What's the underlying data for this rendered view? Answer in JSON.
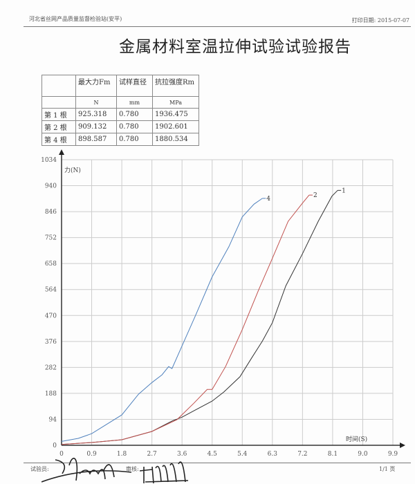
{
  "header": {
    "org": "河北省丝网产品质量监督检验站(安平)",
    "print_date_label": "打印日期:",
    "print_date": "2015-07-07"
  },
  "title": "金属材料室温拉伸试验试验报告",
  "table": {
    "headers": [
      "",
      "最大力Fm",
      "试样直径",
      "抗拉强度Rm"
    ],
    "units": [
      "",
      "N",
      "mm",
      "MPa"
    ],
    "rows": [
      [
        "第 1 根",
        "925.318",
        "0.780",
        "1936.475"
      ],
      [
        "第 2 根",
        "909.132",
        "0.780",
        "1902.601"
      ],
      [
        "第 4 根",
        "898.587",
        "0.780",
        "1880.534"
      ]
    ]
  },
  "chart_data": {
    "type": "line",
    "ylabel": "力(N)",
    "xlabel": "时间(S)",
    "xlim": [
      0,
      9.9
    ],
    "ylim": [
      0,
      1034
    ],
    "xticks": [
      "0",
      "0.9",
      "1.8",
      "2.7",
      "3.6",
      "4.5",
      "5.4",
      "6.3",
      "7.2",
      "8.1",
      "9.0",
      "9.9"
    ],
    "yticks": [
      "0",
      "94",
      "188",
      "282",
      "376",
      "470",
      "564",
      "658",
      "752",
      "846",
      "940",
      "1034"
    ],
    "grid": true,
    "series": [
      {
        "name": "1",
        "color": "#333333",
        "points": [
          [
            0,
            3
          ],
          [
            0.9,
            10
          ],
          [
            1.8,
            20
          ],
          [
            2.7,
            50
          ],
          [
            3.3,
            88
          ],
          [
            3.6,
            102
          ],
          [
            4.0,
            128
          ],
          [
            4.5,
            160
          ],
          [
            4.85,
            193
          ],
          [
            5.33,
            248
          ],
          [
            5.7,
            320
          ],
          [
            6.0,
            377
          ],
          [
            6.3,
            444
          ],
          [
            6.7,
            577
          ],
          [
            7.2,
            694
          ],
          [
            7.67,
            811
          ],
          [
            8.08,
            902
          ],
          [
            8.25,
            923
          ]
        ]
      },
      {
        "name": "2",
        "color": "#c0504d",
        "points": [
          [
            0,
            3
          ],
          [
            0.9,
            10
          ],
          [
            1.8,
            20
          ],
          [
            2.7,
            50
          ],
          [
            3.45,
            93
          ],
          [
            3.95,
            152
          ],
          [
            4.35,
            202
          ],
          [
            4.5,
            202
          ],
          [
            4.9,
            285
          ],
          [
            5.4,
            419
          ],
          [
            5.88,
            560
          ],
          [
            6.3,
            677
          ],
          [
            6.77,
            811
          ],
          [
            7.2,
            877
          ],
          [
            7.4,
            906
          ]
        ]
      },
      {
        "name": "4",
        "color": "#4f81bd",
        "points": [
          [
            0,
            14
          ],
          [
            0.5,
            25
          ],
          [
            0.9,
            42
          ],
          [
            1.8,
            110
          ],
          [
            2.3,
            185
          ],
          [
            2.7,
            227
          ],
          [
            3.0,
            255
          ],
          [
            3.2,
            285
          ],
          [
            3.3,
            278
          ],
          [
            3.6,
            360
          ],
          [
            4.0,
            469
          ],
          [
            4.5,
            610
          ],
          [
            5.0,
            719
          ],
          [
            5.4,
            827
          ],
          [
            5.75,
            873
          ],
          [
            6.0,
            894
          ]
        ]
      }
    ]
  },
  "footer": {
    "tester_label": "试验员:",
    "reviewer_label": "审核:",
    "page": "1/1 页"
  }
}
